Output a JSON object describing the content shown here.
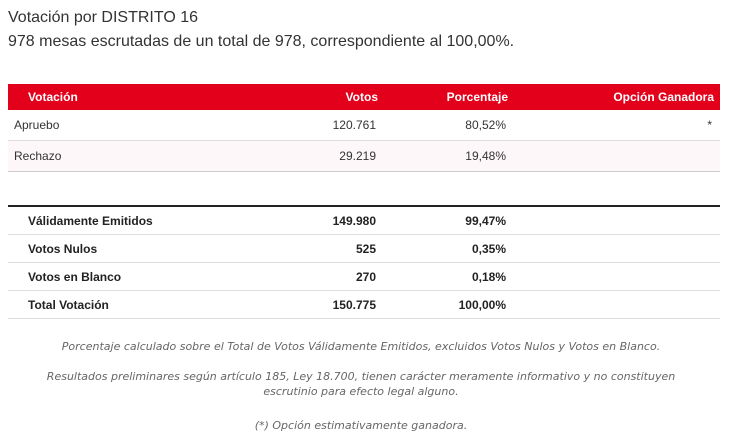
{
  "header": {
    "title": "Votación por DISTRITO 16",
    "subtitle": "978 mesas escrutadas de un total de 978, correspondiente al 100,00%."
  },
  "table": {
    "columns": [
      "Votación",
      "Votos",
      "Porcentaje",
      "Opción Ganadora"
    ],
    "rows": [
      {
        "option": "Apruebo",
        "votes": "120.761",
        "percent": "80,52%",
        "winner": "*"
      },
      {
        "option": "Rechazo",
        "votes": "29.219",
        "percent": "19,48%",
        "winner": ""
      }
    ]
  },
  "totals": [
    {
      "label": "Válidamente Emitidos",
      "votes": "149.980",
      "percent": "99,47%"
    },
    {
      "label": "Votos Nulos",
      "votes": "525",
      "percent": "0,35%"
    },
    {
      "label": "Votos en Blanco",
      "votes": "270",
      "percent": "0,18%"
    },
    {
      "label": "Total Votación",
      "votes": "150.775",
      "percent": "100,00%"
    }
  ],
  "notes": {
    "percent_note": "Porcentaje calculado sobre el Total de Votos Válidamente Emitidos, excluidos Votos Nulos y Votos en Blanco.",
    "preliminary_note": "Resultados preliminares según artículo 185, Ley 18.700, tienen carácter meramente informativo y no constituyen escrutinio para efecto legal alguno.",
    "winner_note": "(*) Opción estimativamente ganadora."
  }
}
